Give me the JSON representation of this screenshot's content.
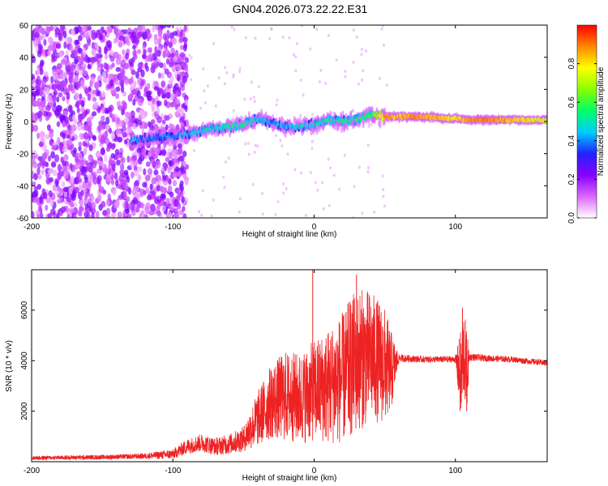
{
  "title": "GN04.2026.073.22.22.E31",
  "colors": {
    "snr_line": "#ee2222",
    "frame": "#000000"
  },
  "chart_data": [
    {
      "type": "heatmap",
      "name": "spectrogram",
      "xlabel": "Height of straight line (km)",
      "ylabel": "Frequency (Hz)",
      "xlim": [
        -200,
        165
      ],
      "ylim": [
        -60,
        60
      ],
      "xticks": [
        -200,
        -100,
        0,
        100
      ],
      "xtick_labels": [
        "-200",
        "-100",
        "0",
        "100"
      ],
      "yticks": [
        -60,
        -40,
        -20,
        0,
        20,
        40,
        60
      ],
      "ytick_labels": [
        "-60",
        "-40",
        "-20",
        "0",
        "20",
        "40",
        "60"
      ],
      "colorbar": {
        "label": "Normalized spectral amplitude",
        "range": [
          0.0,
          1.0
        ],
        "ticks": [
          0.0,
          0.2,
          0.4,
          0.6,
          0.8
        ],
        "tick_labels": [
          "0.0",
          "0.2",
          "0.4",
          "0.6",
          "0.8"
        ],
        "colormap": [
          "#ffffff",
          "#dd66ff",
          "#8800ff",
          "#2222ff",
          "#00ccff",
          "#00ff66",
          "#88ff00",
          "#ffff00",
          "#ff8800",
          "#ff0000"
        ]
      },
      "ridge": {
        "description": "dominant frequency track vs height",
        "x": [
          -130,
          -115,
          -100,
          -90,
          -80,
          -70,
          -60,
          -50,
          -40,
          -30,
          -20,
          -10,
          0,
          10,
          20,
          30,
          40,
          50,
          60,
          70,
          80,
          90,
          100,
          110,
          120,
          130,
          140,
          150,
          165
        ],
        "freq": [
          -12,
          -10,
          -9,
          -8,
          -6,
          -4,
          -3,
          -2,
          2,
          -1,
          -3,
          -3,
          -2,
          1,
          0,
          1,
          4,
          3,
          3,
          3,
          3,
          2,
          2,
          1,
          1,
          1,
          1,
          1,
          1
        ],
        "peak_amplitude": [
          0.45,
          0.4,
          0.42,
          0.45,
          0.5,
          0.5,
          0.55,
          0.55,
          0.5,
          0.45,
          0.45,
          0.5,
          0.5,
          0.55,
          0.55,
          0.55,
          0.6,
          0.9,
          0.85,
          0.9,
          0.85,
          0.85,
          0.8,
          0.9,
          0.92,
          0.9,
          0.85,
          0.8,
          0.75
        ]
      },
      "noise_region": {
        "description": "broadband low-amplitude speckle",
        "x_range": [
          -200,
          -100
        ],
        "amplitude_range": [
          0.05,
          0.25
        ]
      }
    },
    {
      "type": "line",
      "name": "snr",
      "xlabel": "Height of straight line (km)",
      "ylabel": "SNR (10 * v/v)",
      "xlim": [
        -200,
        165
      ],
      "ylim": [
        0,
        7600
      ],
      "xticks": [
        -200,
        -100,
        0,
        100
      ],
      "xtick_labels": [
        "-200",
        "-100",
        "0",
        "100"
      ],
      "yticks": [
        2000,
        4000,
        6000
      ],
      "ytick_labels": [
        "2000",
        "4000",
        "6000"
      ],
      "series": [
        {
          "name": "SNR",
          "envelope_x": [
            -200,
            -150,
            -120,
            -100,
            -90,
            -80,
            -70,
            -60,
            -50,
            -40,
            -30,
            -20,
            -10,
            0,
            10,
            20,
            30,
            40,
            50,
            55,
            60,
            80,
            100,
            104,
            106,
            108,
            110,
            120,
            140,
            165
          ],
          "envelope_mean": [
            150,
            180,
            220,
            300,
            600,
            750,
            600,
            700,
            900,
            1700,
            2400,
            2600,
            2500,
            2800,
            3000,
            3300,
            4000,
            4200,
            3800,
            3600,
            4100,
            4050,
            4050,
            3300,
            4400,
            3500,
            4150,
            4100,
            4050,
            3900
          ],
          "envelope_half_range": [
            80,
            90,
            110,
            200,
            300,
            350,
            350,
            400,
            500,
            1100,
            1500,
            1800,
            1800,
            2000,
            2300,
            2600,
            2900,
            2600,
            2300,
            1500,
            150,
            130,
            130,
            2000,
            1800,
            1700,
            150,
            130,
            120,
            120
          ],
          "spikes": [
            {
              "x": -1,
              "y": 7600
            },
            {
              "x": 30,
              "y": 7400
            },
            {
              "x": 105,
              "y": 6100
            },
            {
              "x": 108,
              "y": 2000
            }
          ]
        }
      ]
    }
  ]
}
